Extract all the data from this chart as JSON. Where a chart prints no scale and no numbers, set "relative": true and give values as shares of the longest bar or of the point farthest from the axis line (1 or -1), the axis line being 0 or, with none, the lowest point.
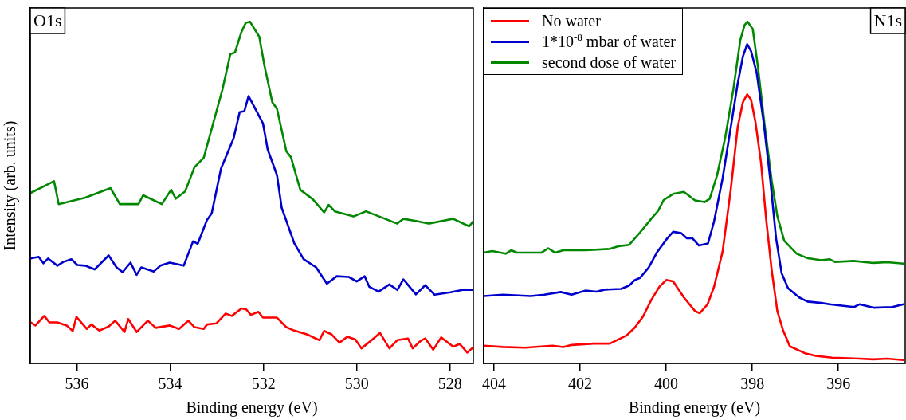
{
  "chart_data": [
    {
      "type": "line",
      "relative": true,
      "xlabel": "Binding energy (eV)",
      "ylabel": "Intensity (arb. units)",
      "annotations": [
        "O1s"
      ],
      "xlim": [
        537,
        527.5
      ],
      "xticks": [
        536,
        534,
        532,
        530,
        528
      ],
      "legend": false,
      "tick_labels": "x",
      "series": [
        {
          "color": "#ff0000",
          "x": [
            536.99,
            536.89,
            536.7,
            536.59,
            536.42,
            536.22,
            536.09,
            536.01,
            535.79,
            535.69,
            535.52,
            535.32,
            535.18,
            534.98,
            534.9,
            534.72,
            534.48,
            534.31,
            534.01,
            533.81,
            533.61,
            533.48,
            533.28,
            533.21,
            533.01,
            532.81,
            532.68,
            532.47,
            532.37,
            532.27,
            532.11,
            532.01,
            531.71,
            531.51,
            531.34,
            531.07,
            530.8,
            530.7,
            530.54,
            530.37,
            530.2,
            530.03,
            529.9,
            529.7,
            529.5,
            529.3,
            529.13,
            528.9,
            528.8,
            528.63,
            528.53,
            528.36,
            528.19,
            527.93,
            527.79,
            527.63,
            527.5
          ],
          "values": [
            0.12,
            0.111,
            0.139,
            0.12,
            0.12,
            0.111,
            0.095,
            0.136,
            0.101,
            0.114,
            0.096,
            0.108,
            0.125,
            0.092,
            0.13,
            0.092,
            0.125,
            0.104,
            0.111,
            0.101,
            0.125,
            0.106,
            0.101,
            0.114,
            0.117,
            0.146,
            0.139,
            0.161,
            0.158,
            0.142,
            0.151,
            0.134,
            0.134,
            0.106,
            0.096,
            0.085,
            0.068,
            0.095,
            0.085,
            0.061,
            0.078,
            0.07,
            0.044,
            0.066,
            0.089,
            0.044,
            0.068,
            0.073,
            0.044,
            0.066,
            0.073,
            0.04,
            0.076,
            0.049,
            0.057,
            0.032,
            0.047
          ]
        },
        {
          "color": "#0000cc",
          "x": [
            536.99,
            536.82,
            536.72,
            536.62,
            536.42,
            536.29,
            536.12,
            535.99,
            535.82,
            535.62,
            535.32,
            535.15,
            535.02,
            534.85,
            534.72,
            534.62,
            534.35,
            534.21,
            534.01,
            533.71,
            533.51,
            533.41,
            533.21,
            533.11,
            532.91,
            532.64,
            532.51,
            532.41,
            532.32,
            532.21,
            532.01,
            531.91,
            531.71,
            531.61,
            531.34,
            531.14,
            530.87,
            530.64,
            530.43,
            530.17,
            530.0,
            529.83,
            529.73,
            529.53,
            529.3,
            529.13,
            529.0,
            528.73,
            528.53,
            528.33,
            527.99,
            527.73,
            527.5
          ],
          "values": [
            0.307,
            0.312,
            0.293,
            0.307,
            0.286,
            0.297,
            0.305,
            0.288,
            0.286,
            0.275,
            0.316,
            0.281,
            0.267,
            0.295,
            0.259,
            0.281,
            0.269,
            0.286,
            0.295,
            0.286,
            0.357,
            0.35,
            0.42,
            0.439,
            0.57,
            0.659,
            0.735,
            0.738,
            0.782,
            0.754,
            0.702,
            0.626,
            0.551,
            0.456,
            0.352,
            0.305,
            0.281,
            0.233,
            0.255,
            0.253,
            0.24,
            0.255,
            0.224,
            0.21,
            0.231,
            0.215,
            0.246,
            0.202,
            0.229,
            0.201,
            0.208,
            0.215,
            0.215
          ]
        },
        {
          "color": "#008800",
          "x": [
            536.99,
            536.49,
            536.39,
            535.82,
            535.28,
            535.08,
            534.68,
            534.58,
            534.18,
            533.98,
            533.88,
            533.68,
            533.48,
            533.28,
            532.88,
            532.71,
            532.61,
            532.48,
            532.38,
            532.29,
            532.09,
            531.98,
            531.81,
            531.71,
            531.51,
            531.41,
            531.21,
            530.94,
            530.7,
            530.6,
            530.47,
            530.07,
            529.8,
            529.13,
            529.0,
            528.73,
            528.46,
            527.93,
            527.59,
            527.5
          ],
          "values": [
            0.499,
            0.533,
            0.466,
            0.485,
            0.513,
            0.466,
            0.466,
            0.492,
            0.466,
            0.508,
            0.482,
            0.503,
            0.574,
            0.602,
            0.801,
            0.905,
            0.91,
            0.967,
            0.997,
            1.0,
            0.956,
            0.872,
            0.764,
            0.745,
            0.621,
            0.603,
            0.508,
            0.48,
            0.442,
            0.464,
            0.445,
            0.43,
            0.445,
            0.409,
            0.423,
            0.417,
            0.409,
            0.423,
            0.401,
            0.416
          ]
        }
      ]
    },
    {
      "type": "line",
      "relative": true,
      "xlabel": "Binding energy (eV)",
      "annotations": [
        "N1s"
      ],
      "xlim": [
        404.24,
        394.45
      ],
      "xticks": [
        404,
        402,
        400,
        398,
        396
      ],
      "legend": "top left",
      "tick_labels": "x",
      "series": [
        {
          "name": "No water",
          "color": "#ff0000",
          "x": [
            404.24,
            403.79,
            403.28,
            402.64,
            402.39,
            402.2,
            401.69,
            401.31,
            400.92,
            400.73,
            400.54,
            400.35,
            400.16,
            400.0,
            399.84,
            399.59,
            399.33,
            399.22,
            399.04,
            398.89,
            398.69,
            398.5,
            398.34,
            398.22,
            398.12,
            398.03,
            397.93,
            397.8,
            397.68,
            397.55,
            397.42,
            397.29,
            397.13,
            396.78,
            396.53,
            396.15,
            395.51,
            395.19,
            394.87,
            394.49
          ],
          "values": [
            0.052,
            0.048,
            0.046,
            0.052,
            0.048,
            0.054,
            0.058,
            0.058,
            0.082,
            0.105,
            0.137,
            0.185,
            0.224,
            0.244,
            0.24,
            0.193,
            0.153,
            0.147,
            0.173,
            0.224,
            0.328,
            0.51,
            0.692,
            0.764,
            0.787,
            0.772,
            0.708,
            0.589,
            0.423,
            0.272,
            0.153,
            0.098,
            0.05,
            0.03,
            0.022,
            0.017,
            0.014,
            0.012,
            0.014,
            0.01
          ]
        },
        {
          "name": "1*10$^{-8}$ mbar of water",
          "color": "#0000cc",
          "x": [
            404.24,
            403.79,
            403.15,
            402.83,
            402.45,
            402.2,
            401.88,
            401.62,
            401.43,
            401.05,
            400.86,
            400.73,
            400.61,
            400.41,
            400.22,
            399.97,
            399.84,
            399.65,
            399.52,
            399.39,
            399.24,
            399.03,
            398.89,
            398.69,
            398.5,
            398.34,
            398.22,
            398.12,
            398.03,
            397.9,
            397.74,
            397.58,
            397.45,
            397.32,
            397.17,
            396.91,
            396.72,
            396.4,
            396.21,
            395.64,
            395.51,
            395.19,
            394.75,
            394.49
          ],
          "values": [
            0.197,
            0.201,
            0.197,
            0.201,
            0.209,
            0.201,
            0.213,
            0.21,
            0.216,
            0.218,
            0.228,
            0.244,
            0.25,
            0.28,
            0.324,
            0.367,
            0.385,
            0.381,
            0.366,
            0.366,
            0.345,
            0.351,
            0.415,
            0.542,
            0.692,
            0.819,
            0.898,
            0.934,
            0.914,
            0.851,
            0.708,
            0.534,
            0.367,
            0.264,
            0.22,
            0.193,
            0.181,
            0.177,
            0.173,
            0.165,
            0.173,
            0.163,
            0.165,
            0.173
          ]
        },
        {
          "name": "second dose of water",
          "color": "#008800",
          "x": [
            404.24,
            404.04,
            403.73,
            403.6,
            403.47,
            402.9,
            402.74,
            402.58,
            402.39,
            401.88,
            401.31,
            401.11,
            400.86,
            400.61,
            400.35,
            400.19,
            400.06,
            399.84,
            399.59,
            399.33,
            399.11,
            398.99,
            398.82,
            398.63,
            398.44,
            398.28,
            398.18,
            398.11,
            397.99,
            397.87,
            397.71,
            397.55,
            397.42,
            397.26,
            396.97,
            396.72,
            396.4,
            396.21,
            396.08,
            395.64,
            395.19,
            394.87,
            394.49
          ],
          "values": [
            0.324,
            0.329,
            0.321,
            0.331,
            0.324,
            0.324,
            0.337,
            0.324,
            0.331,
            0.331,
            0.335,
            0.343,
            0.347,
            0.383,
            0.423,
            0.446,
            0.478,
            0.496,
            0.502,
            0.477,
            0.472,
            0.482,
            0.55,
            0.661,
            0.803,
            0.946,
            0.99,
            1.0,
            0.978,
            0.867,
            0.692,
            0.534,
            0.431,
            0.359,
            0.321,
            0.308,
            0.302,
            0.305,
            0.297,
            0.3,
            0.294,
            0.296,
            0.292
          ]
        }
      ]
    }
  ]
}
